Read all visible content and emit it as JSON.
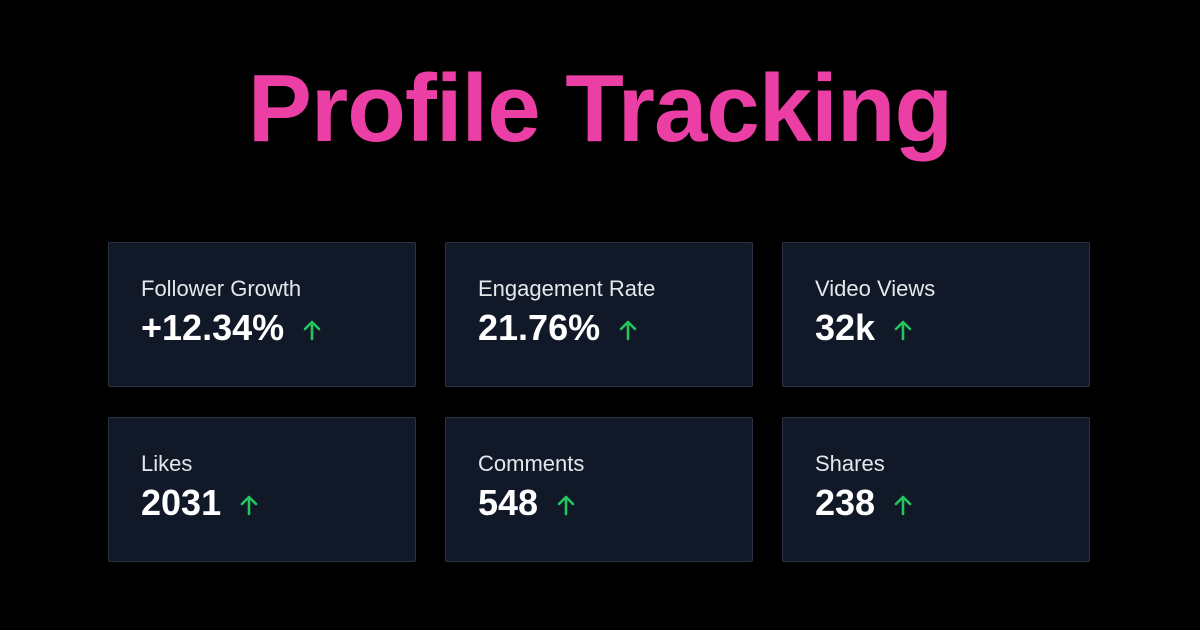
{
  "header": {
    "title": "Profile Tracking",
    "title_color": "#ec3fa6"
  },
  "colors": {
    "background": "#000000",
    "card_background": "#111827",
    "card_border": "#2a3344",
    "label": "#e5e7eb",
    "value": "#ffffff",
    "trend_up": "#22c55e"
  },
  "metrics": [
    {
      "label": "Follower Growth",
      "value": "+12.34%",
      "trend": "up",
      "trend_icon": "arrow-up-icon"
    },
    {
      "label": "Engagement Rate",
      "value": "21.76%",
      "trend": "up",
      "trend_icon": "arrow-up-icon"
    },
    {
      "label": "Video Views",
      "value": "32k",
      "trend": "up",
      "trend_icon": "arrow-up-icon"
    },
    {
      "label": "Likes",
      "value": "2031",
      "trend": "up",
      "trend_icon": "arrow-up-icon"
    },
    {
      "label": "Comments",
      "value": "548",
      "trend": "up",
      "trend_icon": "arrow-up-icon"
    },
    {
      "label": "Shares",
      "value": "238",
      "trend": "up",
      "trend_icon": "arrow-up-icon"
    }
  ]
}
